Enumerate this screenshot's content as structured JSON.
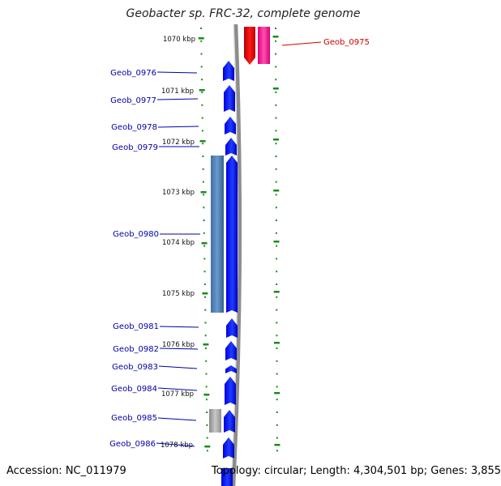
{
  "title": "Geobacter sp. FRC-32, complete genome",
  "footer": {
    "accession": "Accession: NC_011979",
    "summary": "Topology: circular; Length: 4,304,501 bp; Genes: 3,855"
  },
  "ruler_unit": "kbp",
  "ruler_ticks": [
    1070,
    1071,
    1072,
    1073,
    1074,
    1075,
    1076,
    1077,
    1078
  ],
  "genes": [
    {
      "label": "Geob_0975",
      "strand": "-",
      "label_color": "#cc0000",
      "fill": "#ff33a0",
      "shade": "#dd0077"
    },
    {
      "label": "Geob_0976",
      "strand": "+",
      "label_color": "#0000aa",
      "fill": "#0000ff",
      "shade": "#2266ff"
    },
    {
      "label": "Geob_0977",
      "strand": "+",
      "label_color": "#0000aa",
      "fill": "#0000ff",
      "shade": "#2266ff"
    },
    {
      "label": "Geob_0978",
      "strand": "+",
      "label_color": "#0000aa",
      "fill": "#0000ff",
      "shade": "#2266ff"
    },
    {
      "label": "Geob_0979",
      "strand": "+",
      "label_color": "#0000aa",
      "fill": "#0000ff",
      "shade": "#2266ff"
    },
    {
      "label": "Geob_0980",
      "strand": "+",
      "label_color": "#0000aa",
      "fill": "#0000ff",
      "shade": "#2266ff"
    },
    {
      "label": "Geob_0981",
      "strand": "+",
      "label_color": "#0000aa",
      "fill": "#0000ff",
      "shade": "#2266ff"
    },
    {
      "label": "Geob_0982",
      "strand": "+",
      "label_color": "#0000aa",
      "fill": "#0000ff",
      "shade": "#2266ff"
    },
    {
      "label": "Geob_0983",
      "strand": "+",
      "label_color": "#0000aa",
      "fill": "#0000ff",
      "shade": "#2266ff"
    },
    {
      "label": "Geob_0984",
      "strand": "+",
      "label_color": "#0000aa",
      "fill": "#0000ff",
      "shade": "#2266ff"
    },
    {
      "label": "Geob_0985",
      "strand": "+",
      "label_color": "#0000aa",
      "fill": "#0000ff",
      "shade": "#2266ff"
    },
    {
      "label": "Geob_0986",
      "strand": "+",
      "label_color": "#0000aa",
      "fill": "#0000ff",
      "shade": "#2266ff"
    }
  ],
  "colors": {
    "backbone": "#8c8c8c",
    "tick": "#1a8c1a",
    "plus_strand": "#0000ff",
    "minus_strand": "#ff33a0",
    "minus_strand_dark": "#dd0000",
    "accent_blue": "#4a7fb5",
    "accent_gray": "#a8a8a8"
  }
}
